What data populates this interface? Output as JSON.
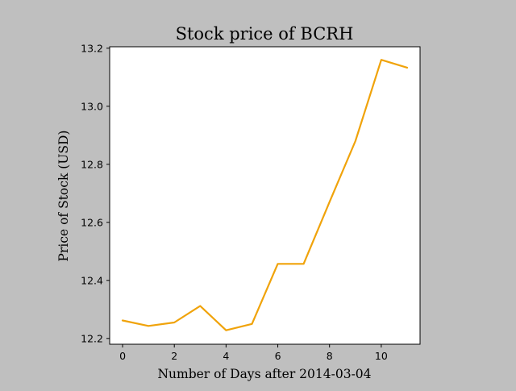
{
  "chart_data": {
    "type": "line",
    "title": "Stock price of BCRH",
    "xlabel": "Number of Days after 2014-03-04",
    "ylabel": "Price of Stock (USD)",
    "xlim": [
      -0.5,
      11.5
    ],
    "ylim": [
      12.18,
      13.205
    ],
    "xticks": [
      0,
      2,
      4,
      6,
      8,
      10
    ],
    "yticks": [
      12.2,
      12.4,
      12.6,
      12.8,
      13.0,
      13.2
    ],
    "xtick_labels": [
      "0",
      "2",
      "4",
      "6",
      "8",
      "10"
    ],
    "ytick_labels": [
      "12.2",
      "12.4",
      "12.6",
      "12.8",
      "13.0",
      "13.2"
    ],
    "grid": false,
    "background_color": "#bfbfbf",
    "plot_background_color": "#ffffff",
    "series": [
      {
        "color": "#f0a30a",
        "x": [
          0,
          1,
          2,
          3,
          4,
          5,
          6,
          7,
          8,
          9,
          10,
          11
        ],
        "y": [
          12.262,
          12.243,
          12.255,
          12.312,
          12.228,
          12.25,
          12.457,
          12.457,
          12.67,
          12.88,
          13.16,
          13.133
        ]
      }
    ]
  }
}
